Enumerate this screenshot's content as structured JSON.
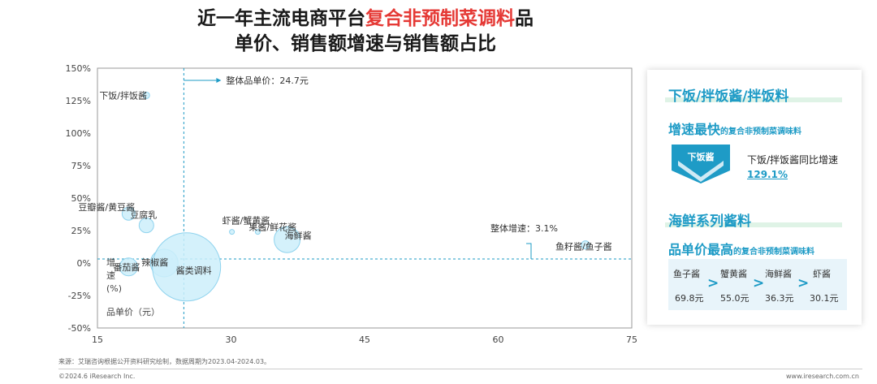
{
  "title": {
    "line1_pre": "近一年主流电商平台",
    "line1_highlight": "复合非预制菜调料",
    "line1_post": "品",
    "line2": "单价、销售额增速与销售额占比"
  },
  "chart_data": {
    "type": "bubble",
    "x_ticks": [
      "15",
      "30",
      "45",
      "60",
      "75"
    ],
    "y_ticks": [
      "150%",
      "125%",
      "100%",
      "75%",
      "50%",
      "25%",
      "0%",
      "-25%",
      "-50%"
    ],
    "xlim": [
      15,
      75
    ],
    "ylim": [
      -50,
      150
    ],
    "xlabel": "品单价（元）",
    "ylabel": "增速\n(%)",
    "ref_x_label": "整体品单价：24.7元",
    "ref_x": 24.7,
    "ref_y_label": "整体增速：3.1%",
    "ref_y": 3.1,
    "points": [
      {
        "name": "下饭/拌饭酱",
        "x": 20.5,
        "y": 129.1,
        "r": 4
      },
      {
        "name": "豆瓣酱/黄豆酱",
        "x": 18.5,
        "y": 38,
        "r": 8
      },
      {
        "name": "豆腐乳",
        "x": 20.5,
        "y": 29,
        "r": 9
      },
      {
        "name": "番茄酱",
        "x": 18.5,
        "y": -3,
        "r": 11
      },
      {
        "name": "辣椒酱",
        "x": 22.5,
        "y": 0,
        "r": 17
      },
      {
        "name": "酱类调料",
        "x": 25.0,
        "y": -3,
        "r": 42
      },
      {
        "name": "虾酱/蟹黄酱",
        "x": 30.1,
        "y": 24,
        "r": 3
      },
      {
        "name": "海鲜酱",
        "x": 36.3,
        "y": 18,
        "r": 16
      },
      {
        "name": "果酱/鲜花酱",
        "x": 33.0,
        "y": 24,
        "r": 3
      },
      {
        "name": "鱼籽酱/鱼子酱",
        "x": 69.8,
        "y": 14,
        "r": 5
      }
    ]
  },
  "panel": {
    "h1": "下饭/拌饭酱/拌饭料",
    "h2a_big": "增速最快",
    "h2a_small": "的复合非预制菜调味料",
    "badge": "下饭酱",
    "growth_desc": "下饭/拌饭酱同比增速",
    "growth_value": "129.1%",
    "h3": "海鲜系列酱料",
    "h4_big": "品单价最高",
    "h4_small": "的复合非预制菜调味料",
    "prices": [
      {
        "name": "鱼子酱",
        "value": "69.8元"
      },
      {
        "name": "蟹黄酱",
        "value": "55.0元"
      },
      {
        "name": "海鲜酱",
        "value": "36.3元"
      },
      {
        "name": "虾酱",
        "value": "30.1元"
      }
    ],
    "arrow": ">"
  },
  "footer": {
    "source": "来源：艾瑞咨询根据公开资料研究绘制，数据周期为2023.04-2024.03。",
    "copyright": "©2024.6 iResearch Inc.",
    "site": "www.iresearch.com.cn"
  },
  "colors": {
    "accent": "#1e9bc6",
    "bubble_fill": "#cdeefa",
    "bubble_stroke": "#8fd3ee",
    "highlight": "#e53935"
  }
}
